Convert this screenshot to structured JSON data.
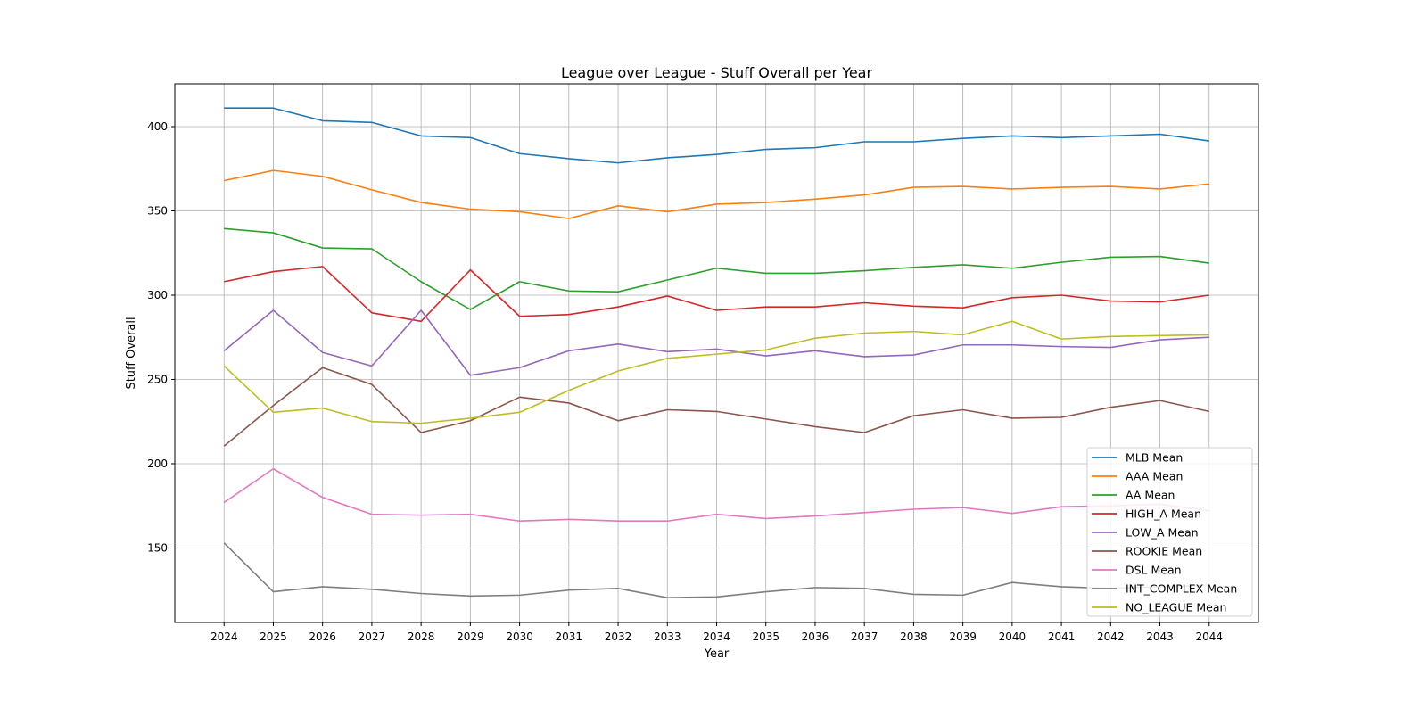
{
  "chart_data": {
    "type": "line",
    "title": "League over League - Stuff Overall per Year",
    "xlabel": "Year",
    "ylabel": "Stuff Overall",
    "x": [
      2024,
      2025,
      2026,
      2027,
      2028,
      2029,
      2030,
      2031,
      2032,
      2033,
      2034,
      2035,
      2036,
      2037,
      2038,
      2039,
      2040,
      2041,
      2042,
      2043,
      2044
    ],
    "xlim": [
      2023,
      2045
    ],
    "ylim": [
      105.8,
      425.4
    ],
    "yticks": [
      150,
      200,
      250,
      300,
      350,
      400
    ],
    "grid": true,
    "legend_placement": "lower-right",
    "series": [
      {
        "name": "MLB Mean",
        "color": "#1f77b4",
        "values": [
          411,
          411,
          403.5,
          402.5,
          394.5,
          393.5,
          384,
          381,
          378.5,
          381.5,
          383.5,
          386.5,
          387.5,
          391,
          391,
          393,
          394.5,
          393.5,
          394.5,
          395.5,
          391.5
        ]
      },
      {
        "name": "AAA Mean",
        "color": "#ff7f0e",
        "values": [
          368,
          374,
          370.5,
          362.5,
          355,
          351,
          349.5,
          345.5,
          353,
          349.5,
          354,
          355,
          357,
          359.5,
          364,
          364.5,
          363,
          364,
          364.5,
          363,
          366
        ]
      },
      {
        "name": "AA Mean",
        "color": "#2ca02c",
        "values": [
          339.5,
          337,
          328,
          327.5,
          308,
          291.5,
          308,
          302.5,
          302,
          309,
          316,
          313,
          313,
          314.5,
          316.5,
          318,
          316,
          319.5,
          322.5,
          323,
          319
        ]
      },
      {
        "name": "HIGH_A Mean",
        "color": "#d62728",
        "values": [
          308,
          314,
          317,
          289.5,
          284.5,
          315,
          287.5,
          288.5,
          293,
          299.5,
          291,
          293,
          293,
          295.5,
          293.5,
          292.5,
          298.5,
          300,
          296.5,
          296,
          300
        ]
      },
      {
        "name": "LOW_A Mean",
        "color": "#9467bd",
        "values": [
          267,
          291,
          266,
          258,
          291,
          252.5,
          257,
          267,
          271,
          266.5,
          268,
          264,
          267,
          263.5,
          264.5,
          270.5,
          270.5,
          269.5,
          269,
          273.5,
          275
        ]
      },
      {
        "name": "ROOKIE Mean",
        "color": "#8c564b",
        "values": [
          210.5,
          234.5,
          257,
          247,
          218.5,
          225.5,
          239.5,
          236,
          225.5,
          232,
          231,
          226.5,
          222,
          218.5,
          228.5,
          232,
          227,
          227.5,
          233.5,
          237.5,
          231
        ]
      },
      {
        "name": "DSL Mean",
        "color": "#e377c2",
        "values": [
          177,
          197,
          180,
          170,
          169.5,
          170,
          166,
          167,
          166,
          166,
          170,
          167.5,
          169,
          171,
          173,
          174,
          170.5,
          174.5,
          175,
          176,
          172
        ]
      },
      {
        "name": "INT_COMPLEX Mean",
        "color": "#7f7f7f",
        "values": [
          153,
          124,
          127,
          125.5,
          123,
          121.5,
          122,
          125,
          126,
          120.5,
          121,
          124,
          126.5,
          126,
          122.5,
          122,
          129.5,
          127,
          126,
          127,
          128
        ]
      },
      {
        "name": "NO_LEAGUE Mean",
        "color": "#bcbd22",
        "values": [
          258,
          230.5,
          233,
          225,
          224,
          227,
          230.5,
          243.5,
          255,
          262.5,
          265,
          267.5,
          274.5,
          277.5,
          278.5,
          276.5,
          284.5,
          274,
          275.5,
          276,
          276.5
        ]
      }
    ]
  }
}
